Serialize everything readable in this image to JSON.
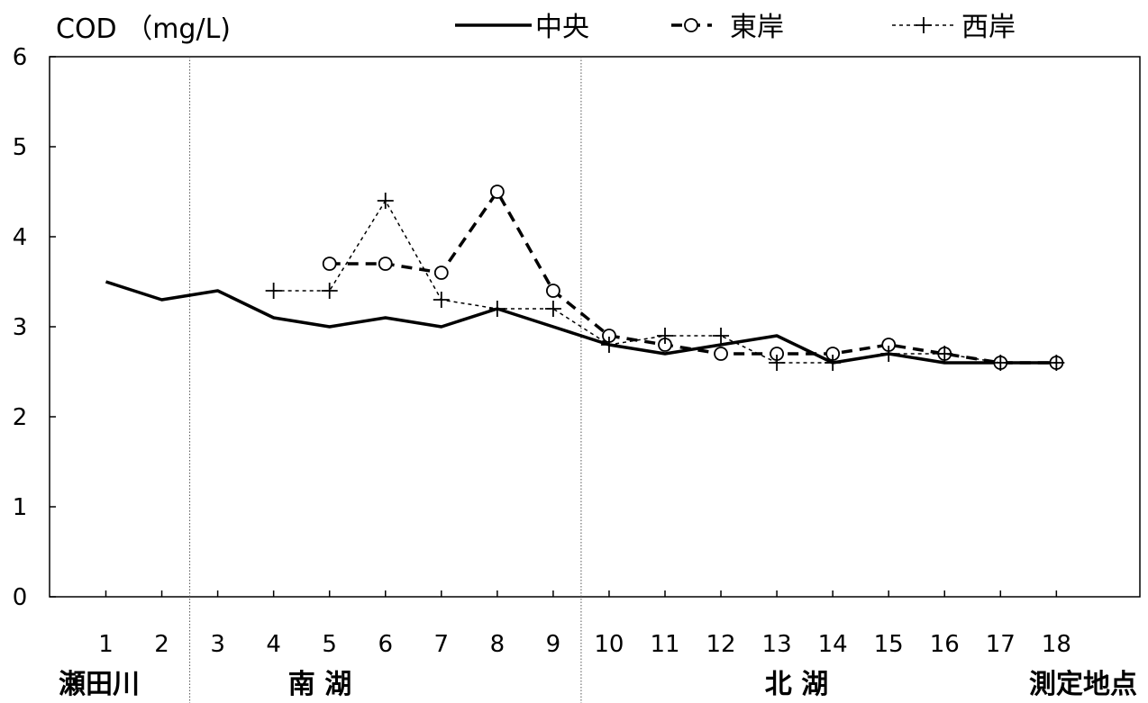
{
  "chart_data": {
    "type": "line",
    "ylabel": "COD （mg/L)",
    "xlabel": "測定地点",
    "ylim": [
      0,
      6
    ],
    "yticks": [
      "0",
      "1",
      "2",
      "3",
      "4",
      "5",
      "6"
    ],
    "categories": [
      "1",
      "2",
      "3",
      "4",
      "5",
      "6",
      "7",
      "8",
      "9",
      "10",
      "11",
      "12",
      "13",
      "14",
      "15",
      "16",
      "17",
      "18"
    ],
    "regions": [
      {
        "label": "瀬田川",
        "from": 1,
        "to": 2
      },
      {
        "label": "南 湖",
        "from": 3,
        "to": 9
      },
      {
        "label": "北 湖",
        "from": 10,
        "to": 18
      }
    ],
    "legend_position": "top",
    "series": [
      {
        "name": "中央",
        "style": "solid",
        "marker": "none",
        "values": [
          3.5,
          3.3,
          3.4,
          3.1,
          3.0,
          3.1,
          3.0,
          3.2,
          3.0,
          2.8,
          2.7,
          2.8,
          2.9,
          2.6,
          2.7,
          2.6,
          2.6,
          2.6
        ]
      },
      {
        "name": "東岸",
        "style": "dashed",
        "marker": "circle",
        "values": [
          null,
          null,
          null,
          null,
          3.7,
          3.7,
          3.6,
          4.5,
          3.4,
          2.9,
          2.8,
          2.7,
          2.7,
          2.7,
          2.8,
          2.7,
          2.6,
          2.6
        ]
      },
      {
        "name": "西岸",
        "style": "dotted",
        "marker": "plus",
        "values": [
          null,
          null,
          null,
          3.4,
          3.4,
          4.4,
          3.3,
          3.2,
          3.2,
          2.8,
          2.9,
          2.9,
          2.6,
          2.6,
          2.7,
          2.7,
          2.6,
          2.6
        ]
      }
    ]
  }
}
